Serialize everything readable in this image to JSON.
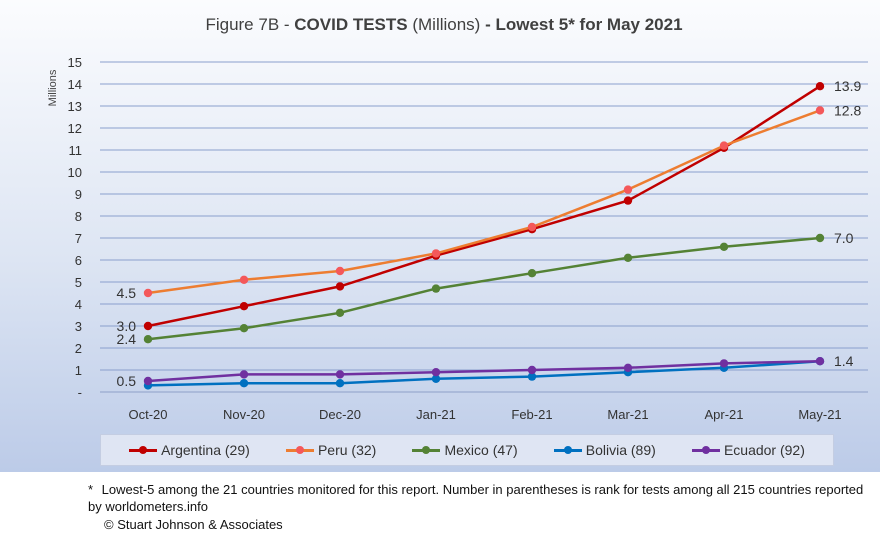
{
  "chart_data": {
    "type": "line",
    "title": {
      "prefix": "Figure 7B - ",
      "bold1": "COVID TESTS",
      "middle": " (Millions) ",
      "bold2": "- Lowest 5* for May 2021"
    },
    "ylabel": "Millions",
    "ylim": [
      0,
      15
    ],
    "yticks": [
      "-",
      "1",
      "2",
      "3",
      "4",
      "5",
      "6",
      "7",
      "8",
      "9",
      "10",
      "11",
      "12",
      "13",
      "14",
      "15"
    ],
    "categories": [
      "Oct-20",
      "Nov-20",
      "Dec-20",
      "Jan-21",
      "Feb-21",
      "Mar-21",
      "Apr-21",
      "May-21"
    ],
    "grid": true,
    "legend_position": "bottom",
    "series": [
      {
        "name": "Argentina (29)",
        "color": "#c00000",
        "marker": "#c00000",
        "values": [
          3.0,
          3.9,
          4.8,
          6.2,
          7.4,
          8.7,
          11.1,
          13.9
        ],
        "start_label": "3.0",
        "end_label": "13.9"
      },
      {
        "name": "Peru (32)",
        "color": "#ed7d31",
        "marker": "#f4585a",
        "values": [
          4.5,
          5.1,
          5.5,
          6.3,
          7.5,
          9.2,
          11.2,
          12.8
        ],
        "start_label": "4.5",
        "end_label": "12.8"
      },
      {
        "name": "Mexico (47)",
        "color": "#548235",
        "marker": "#548235",
        "values": [
          2.4,
          2.9,
          3.6,
          4.7,
          5.4,
          6.1,
          6.6,
          7.0
        ],
        "start_label": "2.4",
        "end_label": "7.0"
      },
      {
        "name": "Bolivia (89)",
        "color": "#0070c0",
        "marker": "#0070c0",
        "values": [
          0.3,
          0.4,
          0.4,
          0.6,
          0.7,
          0.9,
          1.1,
          1.4
        ],
        "start_label": "",
        "end_label": ""
      },
      {
        "name": "Ecuador (92)",
        "color": "#7030a0",
        "marker": "#7030a0",
        "values": [
          0.5,
          0.8,
          0.8,
          0.9,
          1.0,
          1.1,
          1.3,
          1.4
        ],
        "start_label": "0.5",
        "end_label": "1.4"
      }
    ]
  },
  "footnote": {
    "star": "*",
    "text": "Lowest-5 among the 21 countries monitored for this report. Number in parentheses is rank for tests among all 215 countries reported by worldometers.info"
  },
  "copyright": "© Stuart Johnson & Associates"
}
